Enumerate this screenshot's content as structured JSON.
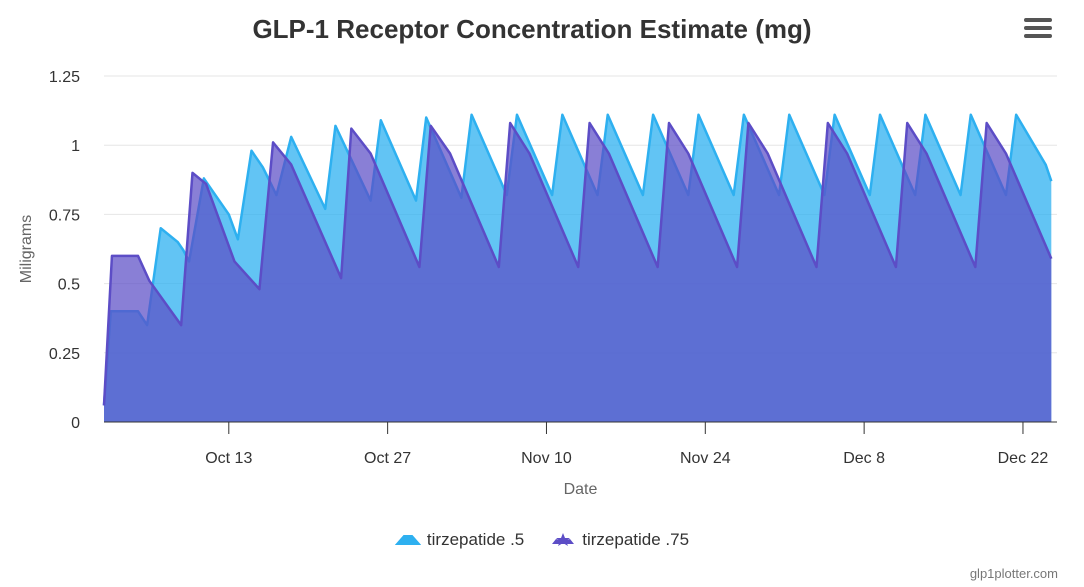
{
  "chart_data": {
    "type": "area",
    "title": "GLP-1 Receptor Concentration Estimate (mg)",
    "xlabel": "Date",
    "ylabel": "Miligrams",
    "ylim": [
      0,
      1.25
    ],
    "yticks": [
      0,
      0.25,
      0.5,
      0.75,
      1,
      1.25
    ],
    "ytick_labels": [
      "0",
      "0.25",
      "0.5",
      "0.75",
      "1",
      "1.25"
    ],
    "xlim": [
      0,
      84
    ],
    "xticks": [
      11,
      25,
      39,
      53,
      67,
      81
    ],
    "xtick_labels": [
      "Oct 13",
      "Oct 27",
      "Nov 10",
      "Nov 24",
      "Dec 8",
      "Dec 22"
    ],
    "series": [
      {
        "name": "tirzepatide .5",
        "color": "#2eb0f0",
        "points": [
          [
            0,
            0.06
          ],
          [
            0.6,
            0.4
          ],
          [
            3,
            0.4
          ],
          [
            3.8,
            0.35
          ],
          [
            5,
            0.7
          ],
          [
            6.5,
            0.65
          ],
          [
            7,
            0.62
          ],
          [
            7.5,
            0.58
          ],
          [
            8.8,
            0.88
          ],
          [
            11,
            0.75
          ],
          [
            11.8,
            0.66
          ],
          [
            13,
            0.98
          ],
          [
            14,
            0.92
          ],
          [
            15.2,
            0.82
          ],
          [
            16.5,
            1.03
          ],
          [
            19.5,
            0.77
          ],
          [
            20.4,
            1.07
          ],
          [
            23.5,
            0.8
          ],
          [
            24.4,
            1.09
          ],
          [
            27.5,
            0.8
          ],
          [
            28.4,
            1.1
          ],
          [
            31.5,
            0.81
          ],
          [
            32.4,
            1.11
          ],
          [
            35.5,
            0.82
          ],
          [
            36.4,
            1.11
          ],
          [
            39.5,
            0.82
          ],
          [
            40.4,
            1.11
          ],
          [
            43.5,
            0.82
          ],
          [
            44.4,
            1.11
          ],
          [
            47.5,
            0.82
          ],
          [
            48.4,
            1.11
          ],
          [
            51.5,
            0.82
          ],
          [
            52.4,
            1.11
          ],
          [
            55.5,
            0.82
          ],
          [
            56.4,
            1.11
          ],
          [
            59.5,
            0.82
          ],
          [
            60.4,
            1.11
          ],
          [
            63.5,
            0.82
          ],
          [
            64.4,
            1.11
          ],
          [
            67.5,
            0.82
          ],
          [
            68.4,
            1.11
          ],
          [
            71.5,
            0.82
          ],
          [
            72.4,
            1.11
          ],
          [
            75.5,
            0.82
          ],
          [
            76.4,
            1.11
          ],
          [
            79.5,
            0.82
          ],
          [
            80.4,
            1.11
          ],
          [
            83,
            0.93
          ],
          [
            83.5,
            0.87
          ]
        ]
      },
      {
        "name": "tirzepatide .75",
        "color": "#5c4dc6",
        "points": [
          [
            0,
            0.06
          ],
          [
            0.7,
            0.6
          ],
          [
            3,
            0.6
          ],
          [
            4,
            0.51
          ],
          [
            6.8,
            0.35
          ],
          [
            7.8,
            0.9
          ],
          [
            9,
            0.86
          ],
          [
            11.5,
            0.58
          ],
          [
            13.7,
            0.48
          ],
          [
            14.9,
            1.01
          ],
          [
            16.5,
            0.93
          ],
          [
            20.9,
            0.52
          ],
          [
            21.8,
            1.06
          ],
          [
            23.5,
            0.97
          ],
          [
            27.8,
            0.56
          ],
          [
            28.8,
            1.07
          ],
          [
            30.5,
            0.97
          ],
          [
            34.8,
            0.56
          ],
          [
            35.8,
            1.08
          ],
          [
            37.5,
            0.97
          ],
          [
            41.8,
            0.56
          ],
          [
            42.8,
            1.08
          ],
          [
            44.5,
            0.97
          ],
          [
            48.8,
            0.56
          ],
          [
            49.8,
            1.08
          ],
          [
            51.5,
            0.97
          ],
          [
            55.8,
            0.56
          ],
          [
            56.8,
            1.08
          ],
          [
            58.5,
            0.97
          ],
          [
            62.8,
            0.56
          ],
          [
            63.8,
            1.08
          ],
          [
            65.5,
            0.97
          ],
          [
            69.8,
            0.56
          ],
          [
            70.8,
            1.08
          ],
          [
            72.5,
            0.97
          ],
          [
            76.8,
            0.56
          ],
          [
            77.8,
            1.08
          ],
          [
            79.5,
            0.97
          ],
          [
            83.5,
            0.59
          ]
        ]
      }
    ],
    "legend": [
      "tirzepatide .5",
      "tirzepatide .75"
    ],
    "legend_position": "bottom-center",
    "grid": true
  },
  "credits": "glp1plotter.com",
  "icons": {
    "menu": "hamburger-menu-icon"
  }
}
